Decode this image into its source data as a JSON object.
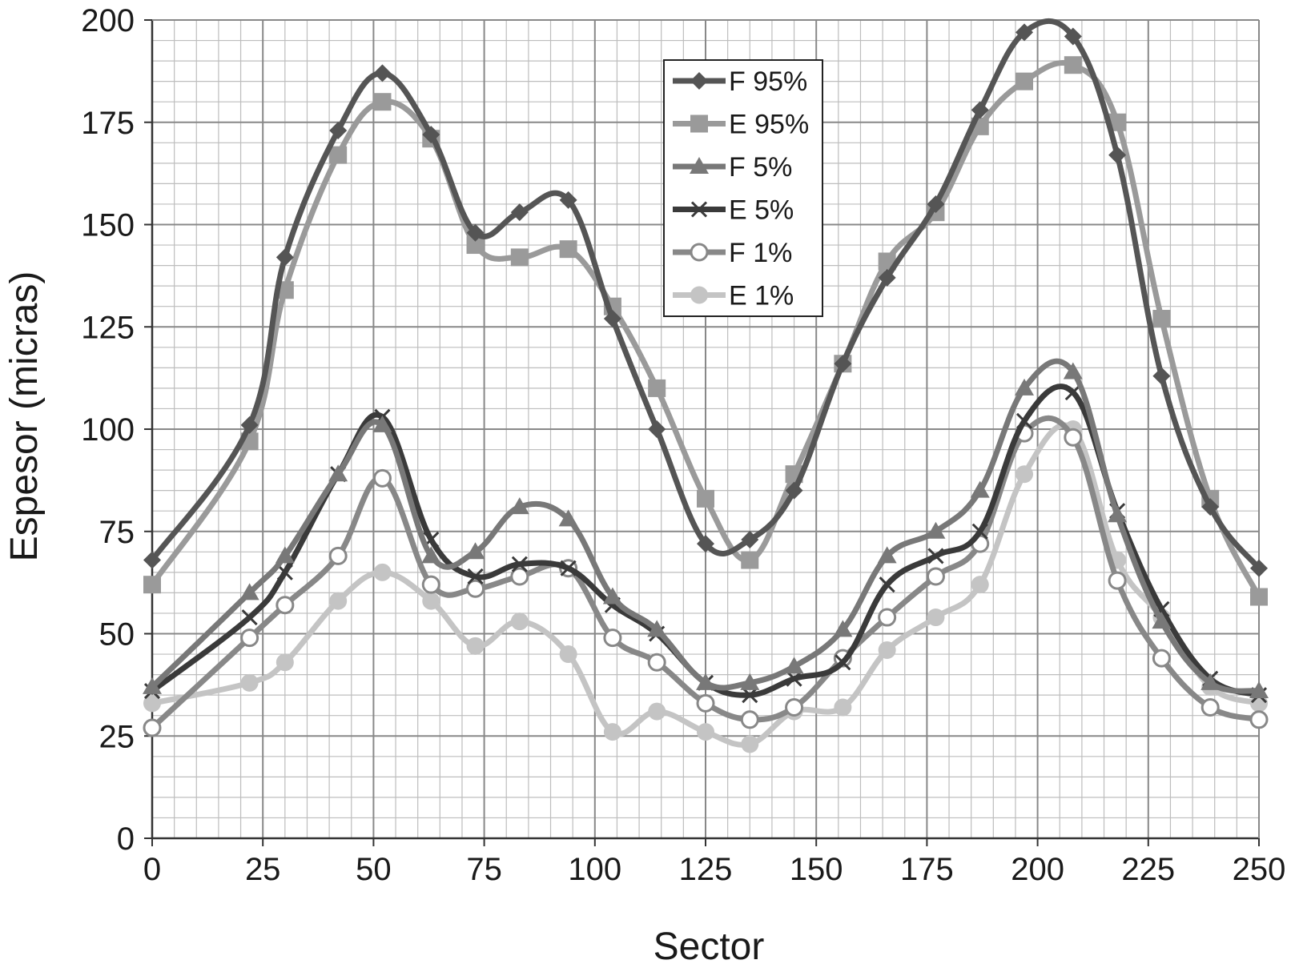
{
  "chart_data": {
    "type": "line",
    "title": "",
    "xlabel": "Sector",
    "ylabel": "Espesor (micras)",
    "xlim": [
      0,
      250
    ],
    "ylim": [
      0,
      200
    ],
    "x_ticks": [
      "0",
      "25",
      "50",
      "75",
      "100",
      "125",
      "150",
      "175",
      "200",
      "225",
      "250"
    ],
    "y_ticks": [
      "0",
      "25",
      "50",
      "75",
      "100",
      "125",
      "150",
      "175",
      "200"
    ],
    "grid": true,
    "legend_position": "top-center",
    "x": [
      0,
      22,
      30,
      42,
      52,
      63,
      73,
      83,
      94,
      104,
      114,
      125,
      135,
      145,
      156,
      166,
      177,
      187,
      197,
      208,
      218,
      228,
      239,
      250
    ],
    "series": [
      {
        "name": "F 95%",
        "color": "#555555",
        "marker": "diamond",
        "values": [
          68,
          101,
          142,
          173,
          187,
          172,
          148,
          153,
          156,
          127,
          100,
          72,
          73,
          85,
          116,
          137,
          155,
          178,
          197,
          196,
          167,
          113,
          81,
          66
        ]
      },
      {
        "name": "E 95%",
        "color": "#9a9a9a",
        "marker": "square",
        "values": [
          62,
          97,
          134,
          167,
          180,
          171,
          145,
          142,
          144,
          130,
          110,
          83,
          68,
          89,
          116,
          141,
          153,
          174,
          185,
          189,
          175,
          127,
          83,
          59
        ]
      },
      {
        "name": "F 5%",
        "color": "#787878",
        "marker": "triangle",
        "values": [
          37,
          60,
          69,
          89,
          101,
          69,
          70,
          81,
          78,
          59,
          51,
          38,
          38,
          42,
          51,
          69,
          75,
          85,
          110,
          114,
          79,
          53,
          38,
          36
        ]
      },
      {
        "name": "E 5%",
        "color": "#3a3a3a",
        "marker": "x",
        "values": [
          36,
          54,
          65,
          89,
          103,
          73,
          64,
          67,
          66,
          57,
          50,
          38,
          35,
          39,
          43,
          62,
          69,
          75,
          102,
          109,
          80,
          56,
          39,
          35
        ]
      },
      {
        "name": "F 1%",
        "color": "#888888",
        "marker": "circle-open",
        "values": [
          27,
          49,
          57,
          69,
          88,
          62,
          61,
          64,
          66,
          49,
          43,
          33,
          29,
          32,
          44,
          54,
          64,
          72,
          99,
          98,
          63,
          44,
          32,
          29
        ]
      },
      {
        "name": "E 1%",
        "color": "#c4c4c4",
        "marker": "circle",
        "values": [
          33,
          38,
          43,
          58,
          65,
          58,
          47,
          53,
          45,
          26,
          31,
          26,
          23,
          31,
          32,
          46,
          54,
          62,
          89,
          100,
          68,
          54,
          37,
          33
        ]
      }
    ]
  }
}
